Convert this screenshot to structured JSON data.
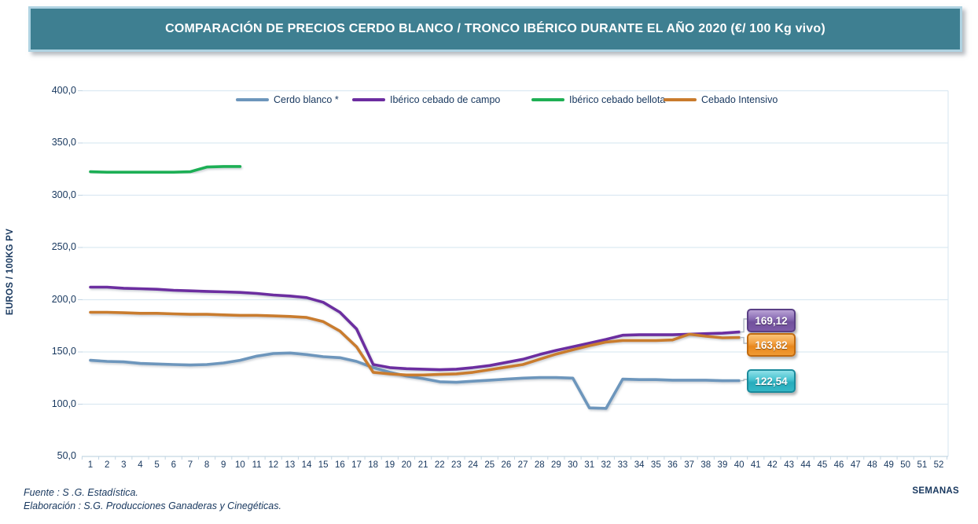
{
  "title": "COMPARACIÓN DE PRECIOS CERDO BLANCO / TRONCO IBÉRICO DURANTE EL AÑO 2020 (€/ 100 Kg vivo)",
  "y_axis": {
    "title": "EUROS / 100KG PV",
    "tick_labels": [
      "400,0",
      "350,0",
      "300,0",
      "250,0",
      "200,0",
      "150,0",
      "100,0",
      "50,0"
    ],
    "tick_values": [
      400,
      350,
      300,
      250,
      200,
      150,
      100,
      50
    ]
  },
  "x_axis": {
    "title": "SEMANAS",
    "tick_labels": [
      "1",
      "2",
      "3",
      "4",
      "5",
      "6",
      "7",
      "8",
      "9",
      "10",
      "11",
      "12",
      "13",
      "14",
      "15",
      "16",
      "17",
      "18",
      "19",
      "20",
      "21",
      "22",
      "23",
      "24",
      "25",
      "26",
      "27",
      "28",
      "29",
      "30",
      "31",
      "32",
      "33",
      "34",
      "35",
      "36",
      "37",
      "38",
      "39",
      "40",
      "41",
      "42",
      "43",
      "44",
      "45",
      "46",
      "47",
      "48",
      "49",
      "50",
      "51",
      "52"
    ]
  },
  "callouts": [
    {
      "text": "169,12",
      "style": "purple"
    },
    {
      "text": "163,82",
      "style": "orange"
    },
    {
      "text": "122,54",
      "style": "cyan"
    }
  ],
  "footer": {
    "line1": "Fuente :  S .G. Estadística.",
    "line2": "Elaboración : S.G. Producciones Ganaderas y Cinegéticas."
  },
  "colors": {
    "title_bar_bg": "#3E7F91",
    "title_bar_border": "#AFD3E2",
    "text": "#17375E",
    "gridline": "#DCE9F2",
    "axis_line": "#C3D6E4"
  },
  "chart_data": {
    "type": "line",
    "title": "COMPARACIÓN DE PRECIOS CERDO BLANCO / TRONCO IBÉRICO DURANTE EL AÑO 2020 (€/ 100 Kg vivo)",
    "xlabel": "SEMANAS",
    "ylabel": "EUROS / 100KG PV",
    "ylim": [
      50,
      400
    ],
    "y_step": 50,
    "x": [
      1,
      2,
      3,
      4,
      5,
      6,
      7,
      8,
      9,
      10,
      11,
      12,
      13,
      14,
      15,
      16,
      17,
      18,
      19,
      20,
      21,
      22,
      23,
      24,
      25,
      26,
      27,
      28,
      29,
      30,
      31,
      32,
      33,
      34,
      35,
      36,
      37,
      38,
      39,
      40,
      41,
      42,
      43,
      44,
      45,
      46,
      47,
      48,
      49,
      50,
      51,
      52
    ],
    "grid": "horizontal",
    "legend_position": "top",
    "series": [
      {
        "name": "Cerdo blanco *",
        "color": "#6D96BC",
        "end_label": "122,54",
        "values": [
          142,
          141,
          140.5,
          139,
          138.5,
          138,
          137.5,
          138,
          139.5,
          142,
          146,
          148.5,
          149,
          147.5,
          145.5,
          144.5,
          141,
          135,
          130.5,
          127,
          124.5,
          121.5,
          121,
          122,
          123,
          124,
          125,
          125.5,
          125.5,
          125,
          96.5,
          96,
          124,
          123.5,
          123.5,
          123,
          123,
          123,
          122.5,
          122.54
        ]
      },
      {
        "name": "Ibérico cebado de campo",
        "color": "#6C2DA0",
        "end_label": "169,12",
        "values": [
          212,
          212,
          211,
          210.5,
          210,
          209,
          208.5,
          208,
          207.5,
          207,
          206,
          204.5,
          203.5,
          202,
          197.5,
          188,
          172,
          138,
          135,
          134,
          133.5,
          133,
          133.5,
          135,
          137,
          140,
          143,
          147.5,
          151.5,
          155,
          158.5,
          162,
          166,
          166.5,
          166.5,
          166.5,
          167,
          167.5,
          168,
          169.12
        ]
      },
      {
        "name": "Ibérico cebado bellota",
        "color": "#1FAF54",
        "values": [
          322.5,
          322,
          322,
          322,
          322,
          322,
          322.5,
          327,
          327.5,
          327.5
        ]
      },
      {
        "name": "Cebado Intensivo",
        "color": "#C97B2D",
        "end_label": "163,82",
        "values": [
          188,
          188,
          187.5,
          187,
          187,
          186.5,
          186,
          186,
          185.5,
          185,
          185,
          184.5,
          184,
          183,
          179,
          170,
          155,
          130.5,
          129,
          128,
          128,
          128.5,
          129,
          130.5,
          133,
          135.5,
          138,
          143,
          148,
          152,
          156,
          159.5,
          161,
          161,
          161,
          161.5,
          167,
          165,
          163.5,
          163.82
        ]
      }
    ]
  }
}
